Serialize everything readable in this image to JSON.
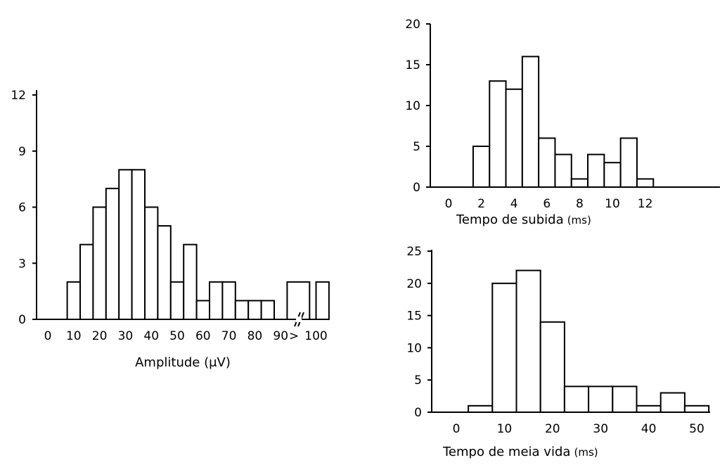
{
  "chart_data": [
    {
      "type": "bar",
      "id": "amplitude",
      "xlabel": "Amplitude (μV)",
      "ylim": [
        0,
        12
      ],
      "y_ticks": [
        "0",
        "3",
        "6",
        "9",
        "12"
      ],
      "x_ticks": [
        "0",
        "10",
        "20",
        "30",
        "40",
        "50",
        "60",
        "70",
        "80",
        "90",
        ">",
        "100"
      ],
      "bin_width": 5,
      "bins": [
        {
          "start": 7.5,
          "value": 2
        },
        {
          "start": 12.5,
          "value": 4
        },
        {
          "start": 17.5,
          "value": 6
        },
        {
          "start": 22.5,
          "value": 7
        },
        {
          "start": 27.5,
          "value": 8
        },
        {
          "start": 32.5,
          "value": 8
        },
        {
          "start": 37.5,
          "value": 6
        },
        {
          "start": 42.5,
          "value": 5
        },
        {
          "start": 47.5,
          "value": 2
        },
        {
          "start": 52.5,
          "value": 4
        },
        {
          "start": 57.5,
          "value": 1
        },
        {
          "start": 62.5,
          "value": 2
        },
        {
          "start": 67.5,
          "value": 2
        },
        {
          "start": 72.5,
          "value": 1
        },
        {
          "start": 77.5,
          "value": 1
        },
        {
          "start": 82.5,
          "value": 1
        },
        {
          "start": 92.5,
          "value": 2
        },
        {
          "start": 100,
          "value": 2
        }
      ],
      "axis_break_after": 95
    },
    {
      "type": "bar",
      "id": "rise-time",
      "xlabel": "Tempo de subida",
      "xlabel_unit": "(ms)",
      "ylim": [
        0,
        20
      ],
      "y_ticks": [
        "0",
        "5",
        "10",
        "15",
        "20"
      ],
      "x_ticks": [
        "0",
        "2",
        "4",
        "6",
        "8",
        "10",
        "12"
      ],
      "bin_width": 1,
      "bins": [
        {
          "start": 1.5,
          "value": 5
        },
        {
          "start": 2.5,
          "value": 13
        },
        {
          "start": 3.5,
          "value": 12
        },
        {
          "start": 4.5,
          "value": 16
        },
        {
          "start": 5.5,
          "value": 6
        },
        {
          "start": 6.5,
          "value": 4
        },
        {
          "start": 7.5,
          "value": 1
        },
        {
          "start": 8.5,
          "value": 4
        },
        {
          "start": 9.5,
          "value": 3
        },
        {
          "start": 10.5,
          "value": 6
        },
        {
          "start": 11.5,
          "value": 1
        }
      ]
    },
    {
      "type": "bar",
      "id": "half-life",
      "xlabel": "Tempo de meia vida",
      "xlabel_unit": "(ms)",
      "ylim": [
        0,
        25
      ],
      "y_ticks": [
        "0",
        "5",
        "10",
        "15",
        "20",
        "25"
      ],
      "x_ticks": [
        "0",
        "10",
        "20",
        "30",
        "40",
        "50"
      ],
      "bin_width": 5,
      "bins": [
        {
          "start": 2.5,
          "value": 1
        },
        {
          "start": 7.5,
          "value": 20
        },
        {
          "start": 12.5,
          "value": 22
        },
        {
          "start": 17.5,
          "value": 14
        },
        {
          "start": 22.5,
          "value": 4
        },
        {
          "start": 27.5,
          "value": 4
        },
        {
          "start": 32.5,
          "value": 4
        },
        {
          "start": 37.5,
          "value": 1
        },
        {
          "start": 42.5,
          "value": 3
        },
        {
          "start": 47.5,
          "value": 1
        }
      ]
    }
  ]
}
